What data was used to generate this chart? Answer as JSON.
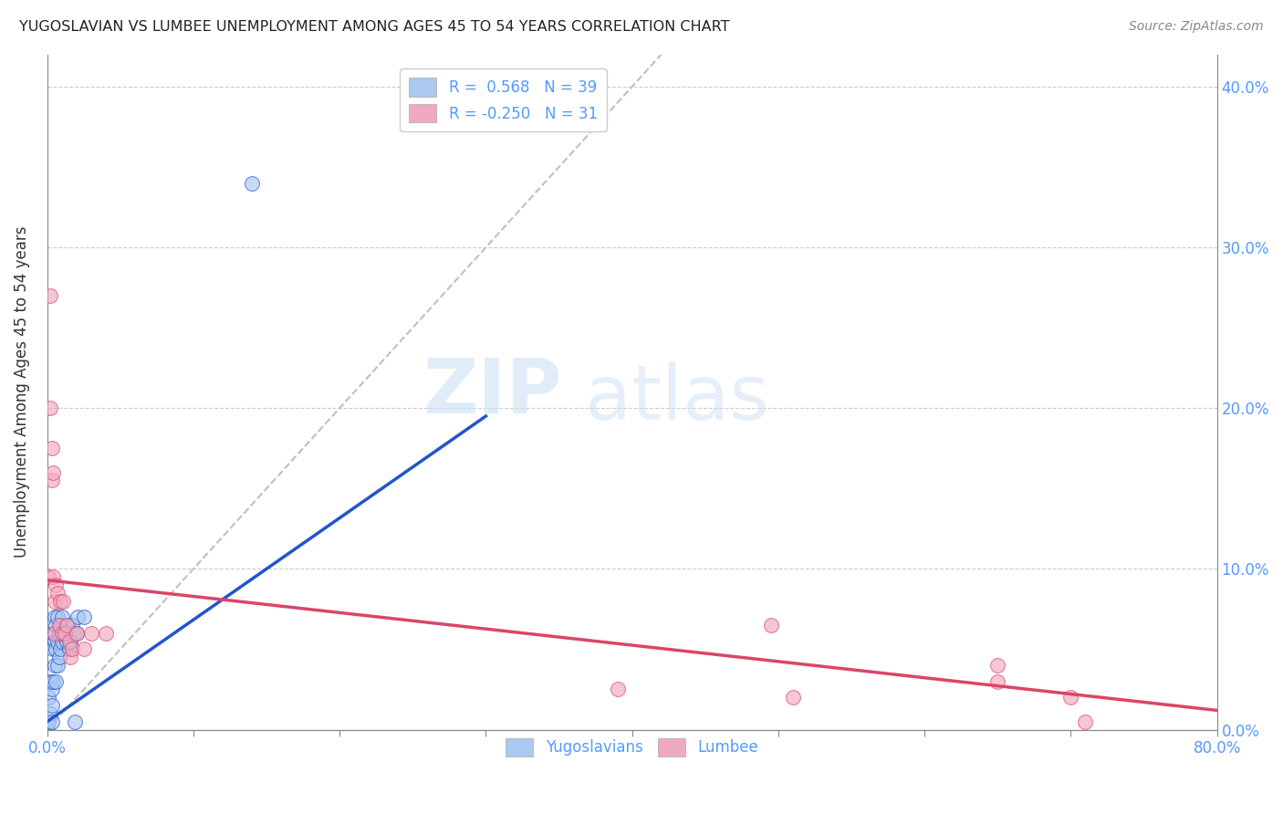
{
  "title": "YUGOSLAVIAN VS LUMBEE UNEMPLOYMENT AMONG AGES 45 TO 54 YEARS CORRELATION CHART",
  "source": "Source: ZipAtlas.com",
  "tick_color": "#5599ff",
  "ylabel": "Unemployment Among Ages 45 to 54 years",
  "xlim": [
    0,
    0.8
  ],
  "ylim": [
    0,
    0.42
  ],
  "xticks": [
    0.0,
    0.1,
    0.2,
    0.3,
    0.4,
    0.5,
    0.6,
    0.7,
    0.8
  ],
  "xtick_labels_show": [
    "0.0%",
    "",
    "",
    "",
    "",
    "",
    "",
    "",
    "80.0%"
  ],
  "yticks": [
    0.0,
    0.1,
    0.2,
    0.3,
    0.4
  ],
  "ytick_labels_right": [
    "0.0%",
    "10.0%",
    "20.0%",
    "30.0%",
    "40.0%"
  ],
  "grid_color": "#cccccc",
  "background_color": "#ffffff",
  "watermark_zip": "ZIP",
  "watermark_atlas": "atlas",
  "legend_r1": "R =  0.568   N = 39",
  "legend_r2": "R = -0.250   N = 31",
  "yugoslavians_color": "#aac8f0",
  "lumbee_color": "#f0aac0",
  "trend_yugo_color": "#2255cc",
  "trend_lumbee_color": "#dd4466",
  "diagonal_color": "#c0c0c0",
  "yugo_scatter": [
    [
      0.0,
      0.0
    ],
    [
      0.001,
      0.005
    ],
    [
      0.001,
      0.02
    ],
    [
      0.002,
      0.01
    ],
    [
      0.002,
      0.03
    ],
    [
      0.003,
      0.005
    ],
    [
      0.003,
      0.015
    ],
    [
      0.003,
      0.025
    ],
    [
      0.004,
      0.03
    ],
    [
      0.004,
      0.05
    ],
    [
      0.004,
      0.06
    ],
    [
      0.005,
      0.04
    ],
    [
      0.005,
      0.055
    ],
    [
      0.005,
      0.07
    ],
    [
      0.006,
      0.03
    ],
    [
      0.006,
      0.05
    ],
    [
      0.006,
      0.065
    ],
    [
      0.007,
      0.04
    ],
    [
      0.007,
      0.055
    ],
    [
      0.007,
      0.07
    ],
    [
      0.008,
      0.045
    ],
    [
      0.008,
      0.06
    ],
    [
      0.009,
      0.05
    ],
    [
      0.009,
      0.065
    ],
    [
      0.01,
      0.055
    ],
    [
      0.01,
      0.07
    ],
    [
      0.011,
      0.06
    ],
    [
      0.012,
      0.06
    ],
    [
      0.013,
      0.055
    ],
    [
      0.014,
      0.065
    ],
    [
      0.015,
      0.05
    ],
    [
      0.016,
      0.055
    ],
    [
      0.017,
      0.065
    ],
    [
      0.018,
      0.06
    ],
    [
      0.019,
      0.005
    ],
    [
      0.02,
      0.06
    ],
    [
      0.021,
      0.07
    ],
    [
      0.025,
      0.07
    ],
    [
      0.14,
      0.34
    ]
  ],
  "lumbee_scatter": [
    [
      0.001,
      0.095
    ],
    [
      0.002,
      0.2
    ],
    [
      0.002,
      0.27
    ],
    [
      0.003,
      0.155
    ],
    [
      0.003,
      0.175
    ],
    [
      0.004,
      0.16
    ],
    [
      0.004,
      0.095
    ],
    [
      0.005,
      0.08
    ],
    [
      0.005,
      0.06
    ],
    [
      0.006,
      0.09
    ],
    [
      0.007,
      0.085
    ],
    [
      0.008,
      0.065
    ],
    [
      0.009,
      0.08
    ],
    [
      0.01,
      0.06
    ],
    [
      0.011,
      0.08
    ],
    [
      0.012,
      0.06
    ],
    [
      0.013,
      0.065
    ],
    [
      0.015,
      0.055
    ],
    [
      0.016,
      0.045
    ],
    [
      0.017,
      0.05
    ],
    [
      0.02,
      0.06
    ],
    [
      0.025,
      0.05
    ],
    [
      0.03,
      0.06
    ],
    [
      0.04,
      0.06
    ],
    [
      0.39,
      0.025
    ],
    [
      0.495,
      0.065
    ],
    [
      0.51,
      0.02
    ],
    [
      0.65,
      0.03
    ],
    [
      0.65,
      0.04
    ],
    [
      0.7,
      0.02
    ],
    [
      0.71,
      0.005
    ]
  ],
  "yugo_trend_x": [
    0.0,
    0.3
  ],
  "yugo_trend_y": [
    0.005,
    0.195
  ],
  "lumbee_trend_x": [
    0.0,
    0.8
  ],
  "lumbee_trend_y": [
    0.093,
    0.012
  ]
}
